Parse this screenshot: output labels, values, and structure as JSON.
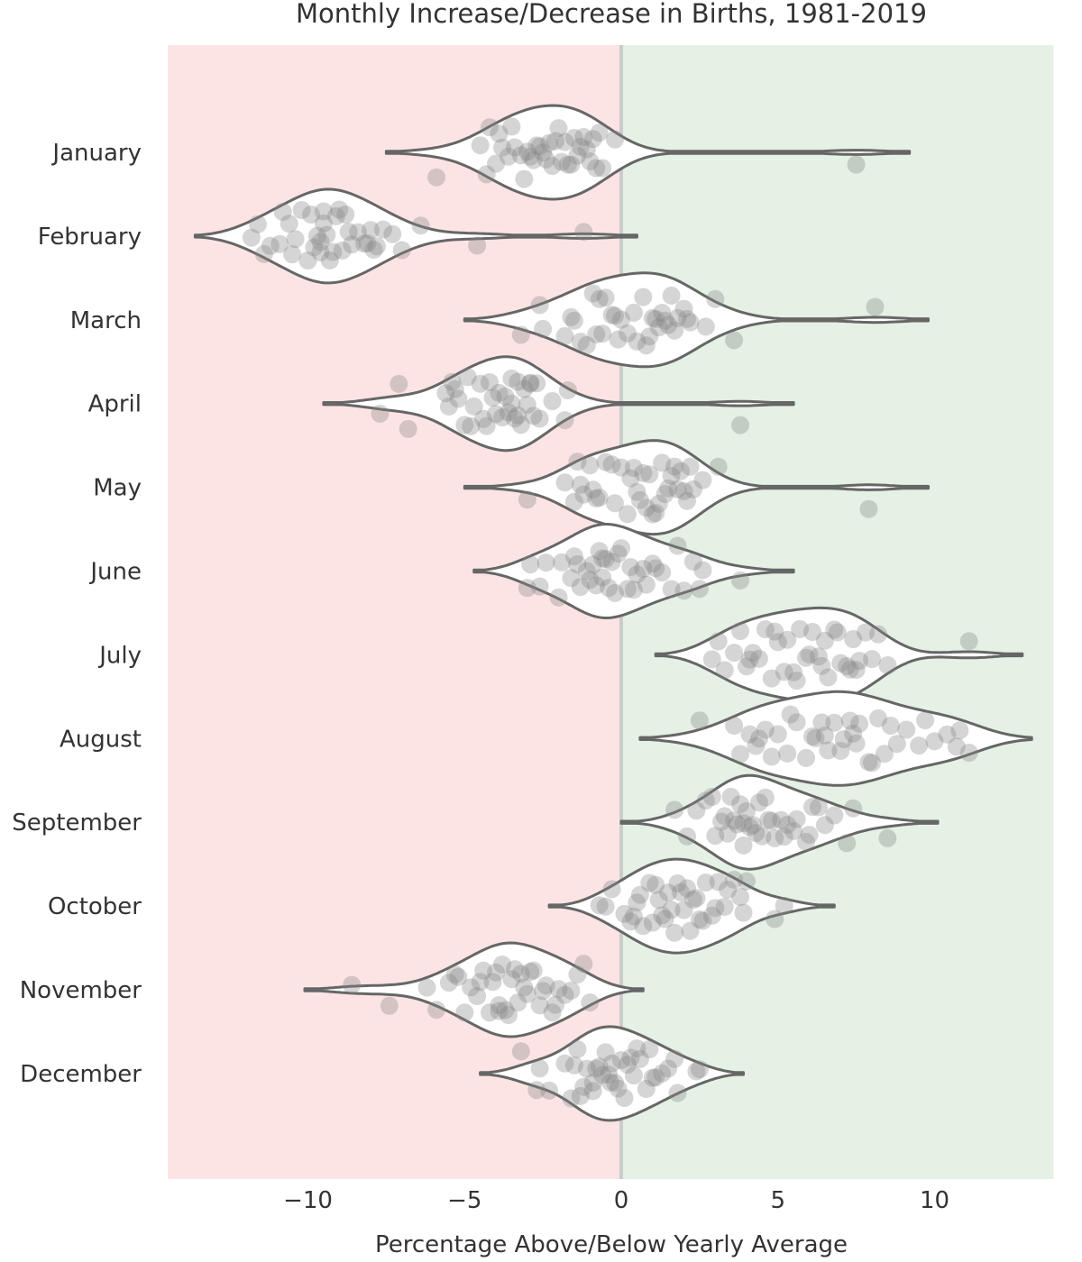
{
  "chart_data": {
    "type": "violin",
    "title": "Monthly Increase/Decrease in Births, 1981-2019",
    "xlabel": "Percentage Above/Below Yearly Average",
    "ylabel": "",
    "xlim": [
      -14.5,
      13.8
    ],
    "xticks": [
      -10,
      -5,
      0,
      5,
      10
    ],
    "xtick_labels": [
      "−10",
      "−5",
      "0",
      "5",
      "10"
    ],
    "grid": false,
    "legend": null,
    "background_regions": [
      {
        "from": -14.5,
        "to": 0,
        "color": "#fde4e4",
        "meaning": "below average"
      },
      {
        "from": 0,
        "to": 13.8,
        "color": "#e4f1e4",
        "meaning": "above average"
      }
    ],
    "zero_line_color": "#cccccc",
    "violin_fill": "#ffffff",
    "violin_edge": "#666666",
    "point_color": "#888888",
    "categories": [
      "January",
      "February",
      "March",
      "April",
      "May",
      "June",
      "July",
      "August",
      "September",
      "October",
      "November",
      "December"
    ],
    "series": [
      {
        "name": "January",
        "extent": [
          -7.5,
          9.2
        ],
        "values": [
          -5.9,
          -4.5,
          -4.2,
          -4.0,
          -3.8,
          -3.6,
          -3.4,
          -3.2,
          -3.0,
          -2.8,
          -2.6,
          -2.5,
          -2.4,
          -2.3,
          -2.2,
          -2.0,
          -1.9,
          -1.8,
          -1.7,
          -1.5,
          -1.4,
          -1.3,
          -1.1,
          -1.0,
          -0.9,
          -0.8,
          -0.7,
          -0.6,
          -0.2,
          7.5,
          -3.9,
          -3.1,
          -2.7,
          -2.1,
          -1.6,
          -1.2,
          -4.3,
          -3.5,
          -2.9
        ]
      },
      {
        "name": "February",
        "extent": [
          -13.6,
          0.5
        ],
        "values": [
          -11.8,
          -11.6,
          -11.2,
          -10.9,
          -10.6,
          -10.4,
          -10.2,
          -10.0,
          -9.9,
          -9.8,
          -9.7,
          -9.6,
          -9.5,
          -9.4,
          -9.3,
          -9.1,
          -8.9,
          -8.7,
          -8.6,
          -8.4,
          -8.2,
          -8.0,
          -7.8,
          -7.6,
          -7.3,
          -7.0,
          -6.4,
          -4.6,
          -1.2,
          -9.6,
          -9.5,
          -10.5,
          -8.8,
          -8.1,
          -11.4,
          -9.0,
          -7.9,
          -10.8,
          -9.2
        ]
      },
      {
        "name": "March",
        "extent": [
          -5.0,
          9.8
        ],
        "values": [
          -3.2,
          -2.6,
          -2.5,
          -1.6,
          -1.5,
          -1.3,
          -0.9,
          -0.8,
          -0.7,
          -0.6,
          -0.3,
          -0.1,
          0.0,
          0.2,
          0.4,
          0.7,
          0.9,
          1.0,
          1.2,
          1.3,
          1.4,
          1.6,
          1.7,
          2.1,
          2.2,
          2.7,
          3.0,
          3.6,
          8.1,
          -1.1,
          -0.5,
          0.5,
          1.1,
          1.5,
          2.0,
          -0.2,
          0.8,
          1.8,
          -1.8
        ]
      },
      {
        "name": "April",
        "extent": [
          -9.5,
          5.5
        ],
        "values": [
          -7.7,
          -7.1,
          -6.8,
          -5.6,
          -5.5,
          -5.4,
          -5.2,
          -5.0,
          -4.9,
          -4.7,
          -4.5,
          -4.3,
          -4.2,
          -4.0,
          -3.9,
          -3.8,
          -3.6,
          -3.5,
          -3.4,
          -3.3,
          -3.2,
          -3.1,
          -3.0,
          -2.9,
          -2.8,
          -2.7,
          -2.2,
          -1.8,
          -1.7,
          3.8,
          -5.3,
          -4.4,
          -3.7,
          -3.3,
          -2.9,
          -4.8,
          -4.1,
          -3.5,
          -2.6
        ]
      },
      {
        "name": "May",
        "extent": [
          -5.0,
          9.8
        ],
        "values": [
          -3.0,
          -1.8,
          -1.5,
          -1.3,
          -1.2,
          -1.0,
          -0.9,
          -0.7,
          -0.5,
          -0.2,
          0.0,
          0.2,
          0.4,
          0.6,
          0.7,
          0.8,
          0.9,
          1.0,
          1.2,
          1.3,
          1.5,
          1.6,
          1.8,
          1.9,
          2.0,
          2.2,
          2.3,
          2.6,
          3.1,
          7.9,
          -1.4,
          -0.8,
          0.3,
          1.1,
          1.7,
          2.1,
          -0.3,
          0.5,
          1.4
        ]
      },
      {
        "name": "June",
        "extent": [
          -4.7,
          5.5
        ],
        "values": [
          -3.0,
          -2.9,
          -2.6,
          -2.4,
          -2.0,
          -1.9,
          -1.6,
          -1.4,
          -1.3,
          -1.0,
          -0.9,
          -0.8,
          -0.7,
          -0.6,
          -0.5,
          -0.4,
          -0.3,
          -0.2,
          0.0,
          0.3,
          0.5,
          0.7,
          0.8,
          1.1,
          1.3,
          1.8,
          2.0,
          2.3,
          2.5,
          3.8,
          -1.5,
          -1.1,
          -0.1,
          0.2,
          1.0,
          1.6,
          -0.6,
          0.4,
          2.6
        ]
      },
      {
        "name": "July",
        "extent": [
          1.1,
          12.8
        ],
        "values": [
          2.9,
          3.1,
          3.3,
          3.8,
          4.0,
          4.2,
          4.4,
          4.6,
          4.8,
          5.0,
          5.3,
          5.5,
          5.7,
          5.9,
          6.1,
          6.3,
          6.5,
          6.6,
          6.8,
          7.0,
          7.2,
          7.4,
          7.6,
          7.8,
          8.0,
          8.2,
          8.5,
          11.1,
          4.1,
          4.9,
          5.6,
          6.4,
          6.9,
          7.3,
          3.6,
          5.2,
          6.0,
          7.5
        ]
      },
      {
        "name": "August",
        "extent": [
          0.6,
          13.1
        ],
        "values": [
          2.5,
          3.6,
          3.8,
          4.1,
          4.4,
          4.6,
          4.8,
          5.0,
          5.3,
          5.6,
          5.9,
          6.2,
          6.4,
          6.6,
          6.8,
          7.1,
          7.3,
          7.5,
          7.6,
          7.9,
          8.2,
          8.4,
          8.8,
          9.1,
          9.5,
          9.7,
          10.0,
          10.4,
          10.7,
          10.8,
          11.1,
          5.4,
          6.5,
          7.0,
          7.4,
          8.0,
          8.6,
          4.3,
          6.1
        ]
      },
      {
        "name": "September",
        "extent": [
          0.0,
          10.1
        ],
        "values": [
          1.7,
          2.1,
          2.4,
          2.9,
          3.0,
          3.2,
          3.4,
          3.6,
          3.7,
          3.8,
          3.9,
          4.0,
          4.1,
          4.2,
          4.4,
          4.5,
          4.7,
          4.9,
          5.1,
          5.3,
          5.6,
          5.9,
          6.1,
          6.3,
          6.5,
          6.8,
          7.2,
          7.4,
          8.5,
          3.5,
          4.3,
          4.8,
          5.2,
          6.0,
          3.3,
          3.9,
          4.6,
          5.5,
          2.7
        ]
      },
      {
        "name": "October",
        "extent": [
          -2.3,
          6.8
        ],
        "values": [
          -0.7,
          -0.5,
          -0.3,
          0.1,
          0.3,
          0.5,
          0.7,
          0.9,
          1.0,
          1.2,
          1.3,
          1.5,
          1.6,
          1.8,
          1.9,
          2.0,
          2.1,
          2.2,
          2.4,
          2.5,
          2.7,
          2.9,
          3.1,
          3.3,
          3.6,
          3.8,
          3.9,
          4.0,
          4.9,
          5.2,
          0.4,
          1.1,
          1.4,
          2.3,
          2.6,
          3.0,
          0.6,
          1.7,
          3.4
        ]
      },
      {
        "name": "November",
        "extent": [
          -10.1,
          0.7
        ],
        "values": [
          -8.6,
          -7.4,
          -6.2,
          -5.9,
          -5.5,
          -5.2,
          -5.0,
          -4.8,
          -4.6,
          -4.4,
          -4.2,
          -4.0,
          -3.9,
          -3.8,
          -3.6,
          -3.5,
          -3.4,
          -3.3,
          -3.2,
          -3.0,
          -2.8,
          -2.6,
          -2.4,
          -2.2,
          -2.0,
          -1.8,
          -1.6,
          -1.2,
          -1.0,
          -4.1,
          -3.7,
          -3.1,
          -2.5,
          -4.5,
          -3.9,
          -2.9,
          -5.3,
          -2.1,
          -1.4
        ]
      },
      {
        "name": "December",
        "extent": [
          -4.5,
          3.9
        ],
        "values": [
          -3.2,
          -2.7,
          -2.6,
          -2.3,
          -1.8,
          -1.6,
          -1.5,
          -1.4,
          -1.2,
          -1.1,
          -0.9,
          -0.8,
          -0.6,
          -0.5,
          -0.4,
          -0.3,
          -0.2,
          -0.1,
          0.0,
          0.1,
          0.2,
          0.4,
          0.6,
          0.8,
          0.9,
          1.1,
          1.3,
          1.7,
          1.8,
          2.5,
          -1.3,
          -0.7,
          -0.35,
          0.3,
          1.0,
          1.5,
          -0.9,
          0.5,
          2.4
        ]
      }
    ]
  }
}
